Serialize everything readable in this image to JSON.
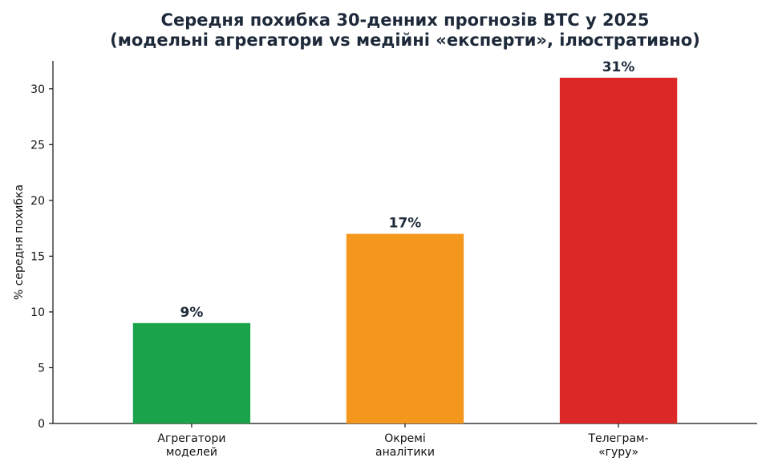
{
  "chart_data": {
    "type": "bar",
    "title_lines": [
      "Середня похибка 30-денних прогнозів BTC у 2025",
      "(модельні агрегатори vs медійні «експерти», ілюстративно)"
    ],
    "ylabel": "% середня похибка",
    "xlabel": "",
    "ylim": [
      0,
      32.5
    ],
    "yticks": [
      0,
      5,
      10,
      15,
      20,
      25,
      30
    ],
    "categories": [
      [
        "Агрегатори",
        "моделей"
      ],
      [
        "Окремі",
        "аналітики"
      ],
      [
        "Телеграм-",
        "«гуру»"
      ]
    ],
    "values": [
      9,
      17,
      31
    ],
    "data_labels": [
      "9%",
      "17%",
      "31%"
    ],
    "colors": [
      "#1aa34a",
      "#f5961d",
      "#dc2826"
    ],
    "grid": false,
    "legend": "none"
  }
}
